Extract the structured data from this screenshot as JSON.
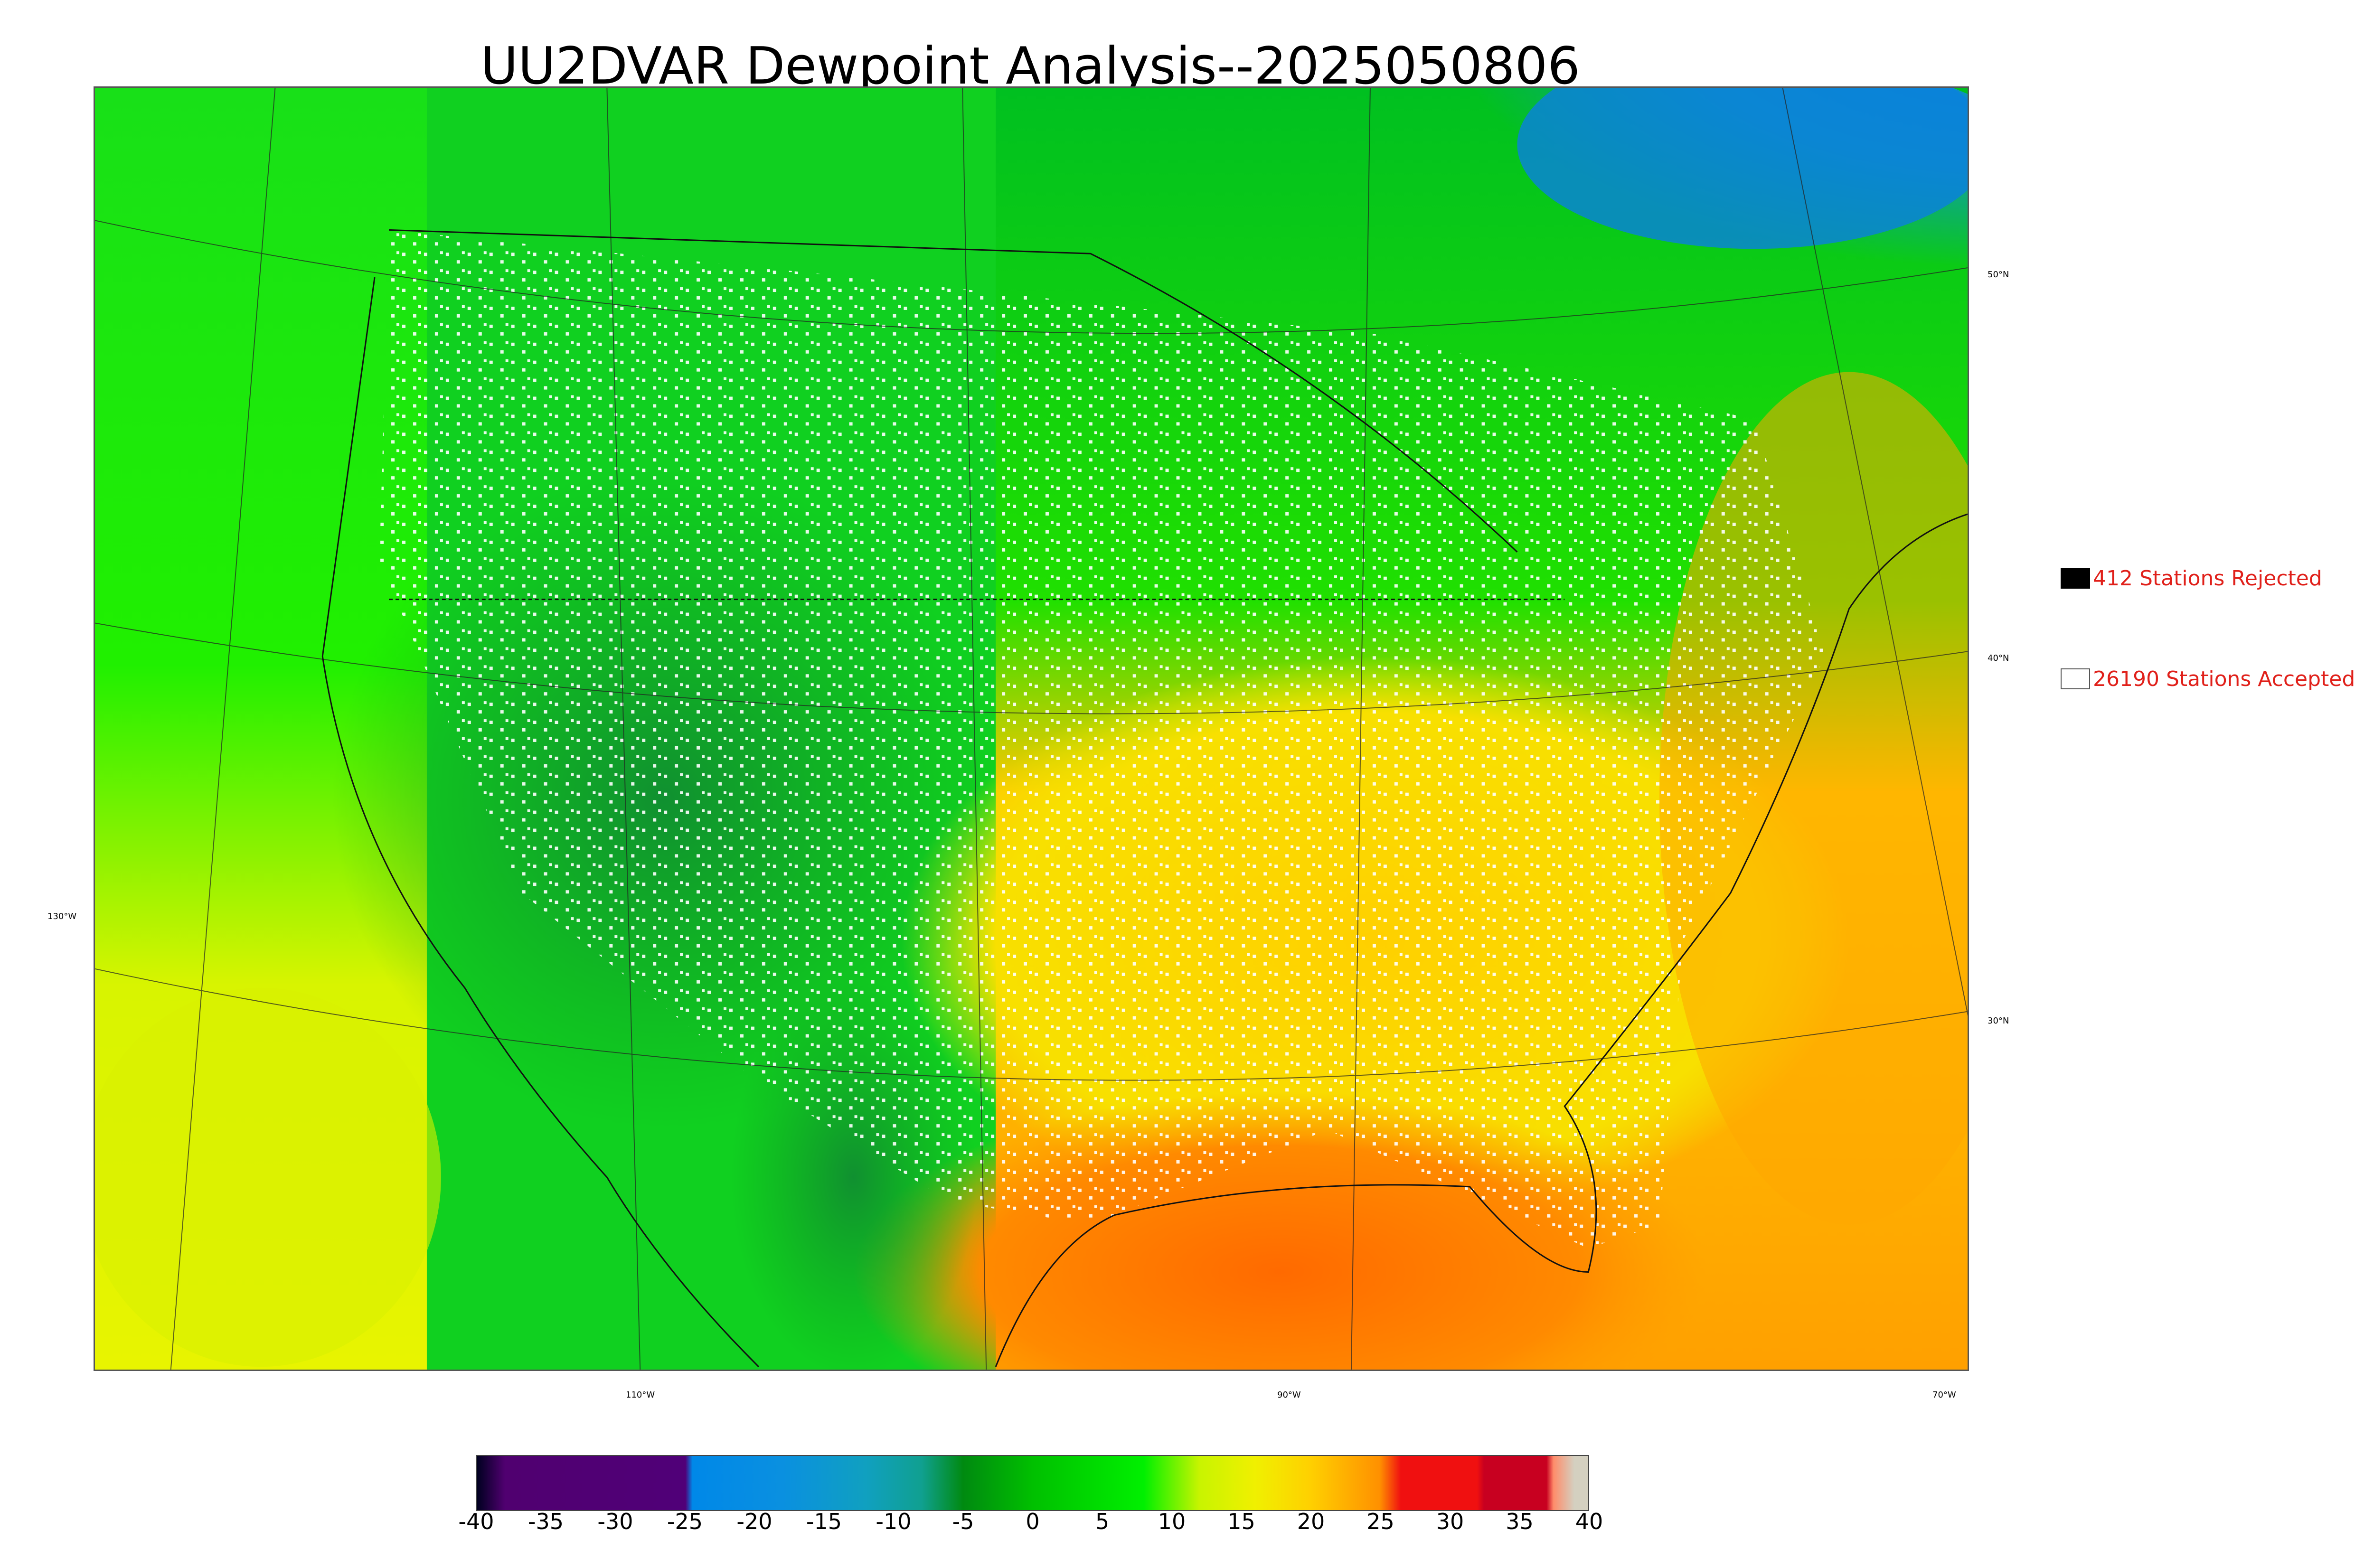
{
  "title": "UU2DVAR Dewpoint Analysis--2025050806",
  "legend": {
    "rejected": {
      "label": "412 Stations Rejected",
      "swatch_color": "#000000"
    },
    "accepted": {
      "label": "26190 Stations Accepted",
      "swatch_color": "#ffffff"
    }
  },
  "graticule": {
    "lat_labels": [
      "50°N",
      "40°N",
      "30°N"
    ],
    "lon_labels": [
      "130°W",
      "110°W",
      "90°W",
      "70°W"
    ]
  },
  "colorbar": {
    "ticks": [
      "-40",
      "-35",
      "-30",
      "-25",
      "-20",
      "-15",
      "-10",
      "-5",
      "0",
      "5",
      "10",
      "15",
      "20",
      "25",
      "30",
      "35",
      "40"
    ],
    "range": [
      -40,
      40
    ],
    "stops": [
      {
        "value": -40,
        "color": "#000020"
      },
      {
        "value": -38,
        "color": "#500070"
      },
      {
        "value": -25,
        "color": "#500078"
      },
      {
        "value": -24.5,
        "color": "#0088e8"
      },
      {
        "value": -18,
        "color": "#0a90e0"
      },
      {
        "value": -12,
        "color": "#10a0c0"
      },
      {
        "value": -8,
        "color": "#10a090"
      },
      {
        "value": -5,
        "color": "#008a10"
      },
      {
        "value": 0,
        "color": "#00c000"
      },
      {
        "value": 8,
        "color": "#00f000"
      },
      {
        "value": 12,
        "color": "#c8f400"
      },
      {
        "value": 16,
        "color": "#f0f000"
      },
      {
        "value": 20,
        "color": "#ffd000"
      },
      {
        "value": 25,
        "color": "#ff9000"
      },
      {
        "value": 26.5,
        "color": "#f01010"
      },
      {
        "value": 32,
        "color": "#f01010"
      },
      {
        "value": 32.5,
        "color": "#c80020"
      },
      {
        "value": 37,
        "color": "#c80020"
      },
      {
        "value": 37.5,
        "color": "#ff8c6a"
      },
      {
        "value": 39,
        "color": "#d4d0c0"
      },
      {
        "value": 40,
        "color": "#d4d0c0"
      }
    ]
  }
}
